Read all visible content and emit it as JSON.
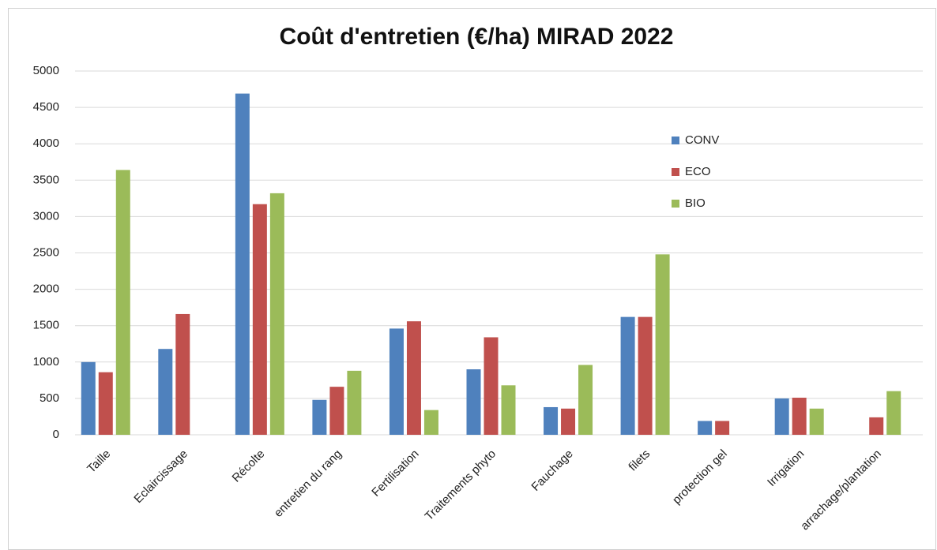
{
  "chart_data": {
    "type": "bar",
    "title": "Coût d'entretien (€/ha) MIRAD 2022",
    "categories": [
      "Taille",
      "Eclaircissage",
      "Récolte",
      "entretien du rang",
      "Fertilisation",
      "Traitements phyto",
      "Fauchage",
      "filets",
      "protection gel",
      "Irrigation",
      "arrachage/plantation"
    ],
    "series": [
      {
        "name": "CONV",
        "color": "#4f81bd",
        "values": [
          1000,
          1180,
          4690,
          480,
          1460,
          900,
          380,
          1620,
          190,
          500,
          null
        ]
      },
      {
        "name": "ECO",
        "color": "#c0504d",
        "values": [
          860,
          1660,
          3170,
          660,
          1560,
          1340,
          360,
          1620,
          190,
          510,
          240
        ]
      },
      {
        "name": "BIO",
        "color": "#9bbb59",
        "values": [
          3640,
          null,
          3320,
          880,
          340,
          680,
          960,
          2480,
          null,
          360,
          600
        ]
      }
    ],
    "ylim": [
      0,
      5000
    ],
    "yticks": [
      0,
      500,
      1000,
      1500,
      2000,
      2500,
      3000,
      3500,
      4000,
      4500,
      5000
    ],
    "grid": true,
    "legend": "right"
  }
}
